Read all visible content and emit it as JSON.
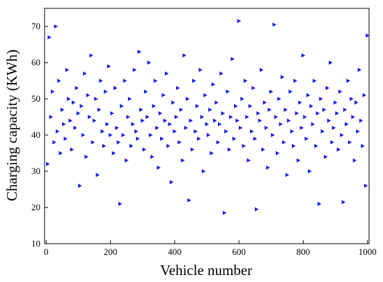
{
  "chart_data": {
    "type": "scatter",
    "xlabel": "Vehicle number",
    "ylabel": "Charging capacity (KWh)",
    "color": "#1a1ae6",
    "xlim": [
      -5,
      1005
    ],
    "ylim": [
      10,
      75
    ],
    "xticks": [
      0,
      200,
      400,
      600,
      800,
      1000
    ],
    "yticks": [
      10,
      20,
      30,
      40,
      50,
      60,
      70
    ],
    "x": [
      5,
      10,
      15,
      20,
      25,
      30,
      35,
      40,
      45,
      50,
      55,
      60,
      65,
      70,
      75,
      80,
      85,
      90,
      95,
      100,
      105,
      110,
      115,
      120,
      125,
      130,
      135,
      140,
      145,
      150,
      155,
      160,
      165,
      170,
      175,
      180,
      185,
      190,
      195,
      200,
      205,
      210,
      215,
      220,
      225,
      230,
      235,
      240,
      245,
      250,
      255,
      260,
      265,
      270,
      275,
      280,
      285,
      290,
      295,
      300,
      305,
      310,
      315,
      320,
      325,
      330,
      335,
      340,
      345,
      350,
      355,
      360,
      365,
      370,
      375,
      380,
      385,
      390,
      395,
      400,
      405,
      410,
      415,
      420,
      425,
      430,
      435,
      440,
      445,
      450,
      455,
      460,
      465,
      470,
      475,
      480,
      485,
      490,
      495,
      500,
      505,
      510,
      515,
      520,
      525,
      530,
      535,
      540,
      545,
      550,
      555,
      560,
      565,
      570,
      575,
      580,
      585,
      590,
      595,
      600,
      605,
      610,
      615,
      620,
      625,
      630,
      635,
      640,
      645,
      650,
      655,
      660,
      665,
      670,
      675,
      680,
      685,
      690,
      695,
      700,
      705,
      710,
      715,
      720,
      725,
      730,
      735,
      740,
      745,
      750,
      755,
      760,
      765,
      770,
      775,
      780,
      785,
      790,
      795,
      800,
      805,
      810,
      815,
      820,
      825,
      830,
      835,
      840,
      845,
      850,
      855,
      860,
      865,
      870,
      875,
      880,
      885,
      890,
      895,
      900,
      905,
      910,
      915,
      920,
      925,
      930,
      935,
      940,
      945,
      950,
      955,
      960,
      965,
      970,
      975,
      980,
      985,
      990,
      995,
      1000
    ],
    "values": [
      32,
      67,
      45,
      52,
      38,
      70,
      41,
      55,
      35,
      47,
      43,
      39,
      58,
      50,
      44,
      36,
      49,
      42,
      53,
      46,
      26,
      48,
      40,
      57,
      34,
      51,
      45,
      62,
      38,
      44,
      50,
      29,
      47,
      55,
      41,
      37,
      52,
      43,
      59,
      40,
      46,
      35,
      53,
      42,
      38,
      21,
      48,
      40,
      55,
      33,
      45,
      50,
      37,
      43,
      58,
      41,
      39,
      63,
      47,
      44,
      36,
      52,
      45,
      60,
      40,
      34,
      48,
      55,
      42,
      31,
      46,
      39,
      51,
      44,
      57,
      37,
      43,
      27,
      49,
      41,
      45,
      53,
      38,
      47,
      33,
      62,
      42,
      50,
      22,
      44,
      36,
      55,
      41,
      48,
      39,
      58,
      45,
      30,
      51,
      43,
      40,
      47,
      35,
      54,
      44,
      49,
      38,
      43,
      57,
      46,
      18.5,
      41,
      52,
      36,
      45,
      61,
      39,
      48,
      44,
      71.5,
      42,
      50,
      37,
      55,
      45,
      33,
      48,
      41,
      53,
      39,
      19.5,
      46,
      44,
      58,
      36,
      49,
      42,
      31,
      47,
      52,
      40,
      70.5,
      45,
      35,
      50,
      43,
      56,
      38,
      47,
      29,
      44,
      52,
      41,
      37,
      55,
      46,
      33,
      49,
      42,
      62,
      45,
      39,
      51,
      30,
      48,
      43,
      55,
      37,
      46,
      21,
      50,
      41,
      47,
      34,
      53,
      44,
      60,
      38,
      42,
      49,
      46,
      36,
      52,
      40,
      21.5,
      47,
      43,
      55,
      38,
      50,
      45,
      33,
      49,
      41,
      58,
      44,
      37,
      51,
      26,
      67.5
    ]
  }
}
